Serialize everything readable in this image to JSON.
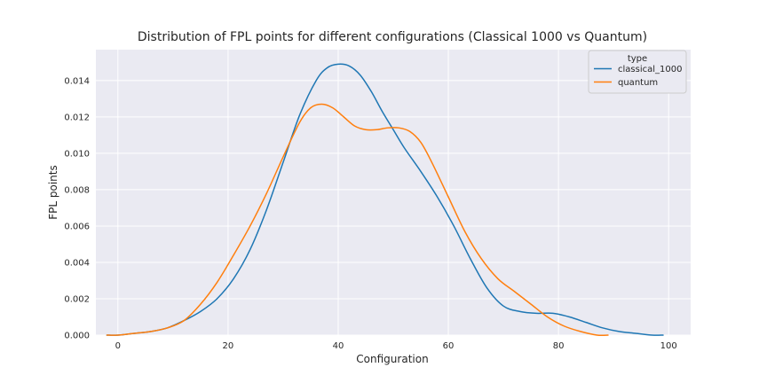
{
  "chart_data": {
    "type": "line",
    "title": "Distribution of FPL points for different configurations (Classical 1000 vs Quantum)",
    "xlabel": "Configuration",
    "ylabel": "FPL points",
    "xlim": [
      -4,
      104
    ],
    "ylim": [
      0,
      0.0157
    ],
    "xticks": [
      0,
      20,
      40,
      60,
      80,
      100
    ],
    "xtick_labels": [
      "0",
      "20",
      "40",
      "60",
      "80",
      "100"
    ],
    "yticks": [
      0,
      0.002,
      0.004,
      0.006,
      0.008,
      0.01,
      0.012,
      0.014
    ],
    "ytick_labels": [
      "0.000",
      "0.002",
      "0.004",
      "0.006",
      "0.008",
      "0.010",
      "0.012",
      "0.014"
    ],
    "grid": true,
    "legend": {
      "title": "type",
      "placement": "top-right",
      "entries": [
        "classical_1000",
        "quantum"
      ]
    },
    "series": [
      {
        "name": "classical_1000",
        "color": "#1f77b4",
        "x": [
          -2,
          0,
          3,
          6,
          9,
          12,
          15,
          18,
          21,
          24,
          27,
          30,
          33,
          36,
          38,
          40,
          42,
          44,
          46,
          48,
          50,
          52,
          55,
          58,
          61,
          64,
          67,
          70,
          73,
          76,
          79,
          82,
          85,
          88,
          91,
          94,
          97,
          99
        ],
        "y": [
          0.0,
          0.0,
          0.0001,
          0.0002,
          0.0004,
          0.0008,
          0.0013,
          0.002,
          0.0031,
          0.0047,
          0.0069,
          0.0095,
          0.0121,
          0.014,
          0.0147,
          0.0149,
          0.0148,
          0.0143,
          0.0134,
          0.0123,
          0.0113,
          0.0103,
          0.009,
          0.0076,
          0.006,
          0.0042,
          0.0026,
          0.0016,
          0.0013,
          0.0012,
          0.0012,
          0.001,
          0.0007,
          0.0004,
          0.0002,
          0.0001,
          0.0,
          0.0
        ]
      },
      {
        "name": "quantum",
        "color": "#ff7f0e",
        "x": [
          -2,
          0,
          3,
          6,
          9,
          12,
          15,
          18,
          21,
          24,
          27,
          30,
          33,
          35,
          37,
          39,
          41,
          43,
          45,
          47,
          49,
          51,
          53,
          55,
          57,
          60,
          63,
          66,
          69,
          72,
          75,
          78,
          81,
          84,
          87,
          89
        ],
        "y": [
          0.0,
          0.0,
          0.0001,
          0.0002,
          0.0004,
          0.0008,
          0.0017,
          0.0029,
          0.0044,
          0.006,
          0.0078,
          0.0098,
          0.0117,
          0.0125,
          0.0127,
          0.0125,
          0.012,
          0.0115,
          0.0113,
          0.0113,
          0.0114,
          0.0114,
          0.0112,
          0.0106,
          0.0095,
          0.0076,
          0.0057,
          0.0042,
          0.0031,
          0.0024,
          0.0017,
          0.001,
          0.0005,
          0.0002,
          0.0,
          0.0
        ]
      }
    ]
  }
}
